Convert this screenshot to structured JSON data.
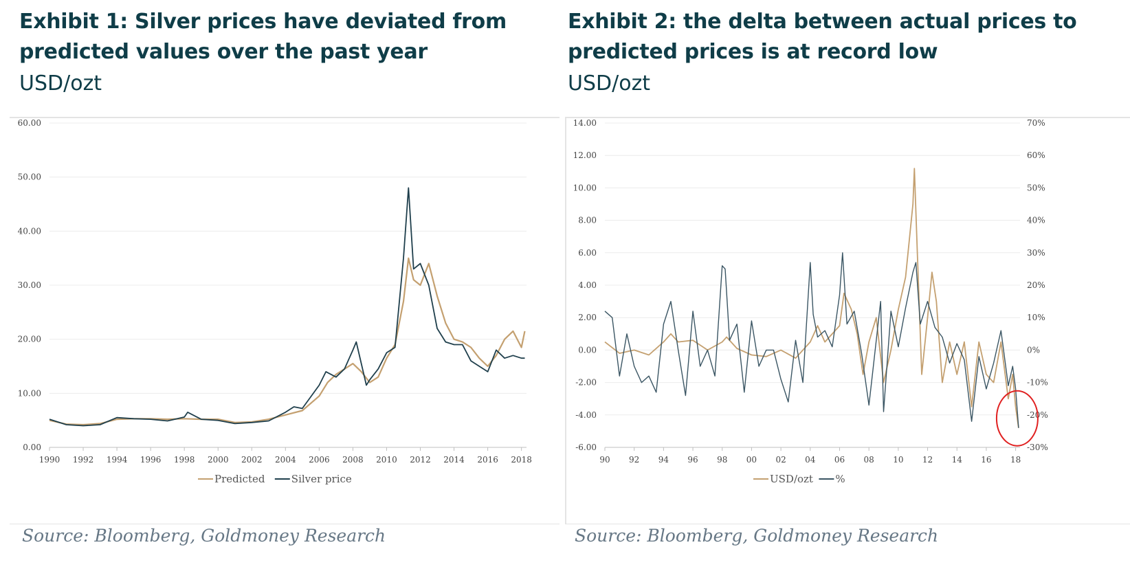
{
  "exhibit1": {
    "title": "Exhibit 1: Silver prices have deviated from predicted values over the past year",
    "subtitle": "USD/ozt",
    "source": "Source: Bloomberg, Goldmoney Research",
    "colors": {
      "predicted": "#c4a070",
      "silver": "#1f3f4c"
    }
  },
  "exhibit2": {
    "title": "Exhibit 2: the delta between actual prices to predicted prices is at record low",
    "subtitle": "USD/ozt",
    "source": "Source: Bloomberg, Goldmoney Research",
    "colors": {
      "usd": "#c4a070",
      "pct": "#3a5563",
      "highlight": "#e02020"
    }
  },
  "chart_data": [
    {
      "type": "line",
      "ylim": [
        0,
        60
      ],
      "xlim": [
        1990,
        2018.3
      ],
      "y_ticks": [
        "0.00",
        "10.00",
        "20.00",
        "30.00",
        "40.00",
        "50.00",
        "60.00"
      ],
      "x_ticks": [
        "1990",
        "1992",
        "1994",
        "1996",
        "1998",
        "2000",
        "2002",
        "2004",
        "2006",
        "2008",
        "2010",
        "2012",
        "2014",
        "2016",
        "2018"
      ],
      "legend_position": "bottom-center",
      "grid": "horizontal",
      "series": [
        {
          "name": "Predicted",
          "x": [
            1990,
            1991,
            1992,
            1993,
            1994,
            1995,
            1996,
            1997,
            1998,
            1999,
            2000,
            2001,
            2002,
            2003,
            2004,
            2005,
            2006,
            2006.5,
            2007,
            2007.5,
            2008,
            2008.5,
            2009,
            2009.5,
            2010,
            2010.5,
            2011,
            2011.3,
            2011.6,
            2012,
            2012.5,
            2013,
            2013.5,
            2014,
            2014.5,
            2015,
            2015.5,
            2016,
            2016.5,
            2017,
            2017.5,
            2018,
            2018.2
          ],
          "values": [
            5.0,
            4.3,
            4.2,
            4.4,
            5.2,
            5.3,
            5.3,
            5.2,
            5.3,
            5.2,
            5.2,
            4.6,
            4.7,
            5.2,
            6.0,
            6.8,
            9.5,
            12.0,
            13.5,
            14.5,
            15.5,
            14.0,
            12.0,
            13.0,
            16.5,
            19.0,
            27.0,
            35.0,
            31.0,
            30.0,
            34.0,
            28.0,
            23.0,
            20.0,
            19.5,
            18.5,
            16.5,
            15.0,
            17.0,
            20.0,
            21.5,
            18.5,
            21.5
          ]
        },
        {
          "name": "Silver price",
          "x": [
            1990,
            1991,
            1992,
            1993,
            1994,
            1995,
            1996,
            1997,
            1998,
            1998.2,
            1999,
            2000,
            2001,
            2002,
            2003,
            2004,
            2004.5,
            2005,
            2006,
            2006.4,
            2007,
            2007.5,
            2008,
            2008.2,
            2008.8,
            2009,
            2009.5,
            2010,
            2010.5,
            2011,
            2011.3,
            2011.6,
            2012,
            2012.5,
            2013,
            2013.5,
            2014,
            2014.5,
            2015,
            2015.5,
            2016,
            2016.5,
            2017,
            2017.5,
            2018,
            2018.2
          ],
          "values": [
            5.2,
            4.2,
            4.0,
            4.2,
            5.5,
            5.3,
            5.2,
            4.9,
            5.6,
            6.5,
            5.2,
            5.0,
            4.4,
            4.6,
            4.9,
            6.5,
            7.5,
            7.2,
            11.5,
            14.0,
            13.0,
            14.5,
            18.0,
            19.5,
            11.5,
            12.5,
            14.5,
            17.5,
            18.5,
            35.0,
            48.0,
            33.0,
            34.0,
            30.0,
            22.0,
            19.5,
            19.0,
            19.0,
            16.0,
            15.0,
            14.0,
            18.0,
            16.5,
            17.0,
            16.5,
            16.5
          ]
        }
      ]
    },
    {
      "type": "line",
      "ylim": [
        -6,
        14
      ],
      "y2lim": [
        -30,
        70
      ],
      "xlim": [
        1990,
        2018.3
      ],
      "y_ticks": [
        "-6.00",
        "-4.00",
        "-2.00",
        "0.00",
        "2.00",
        "4.00",
        "6.00",
        "8.00",
        "10.00",
        "12.00",
        "14.00"
      ],
      "y2_ticks": [
        "-30%",
        "-20%",
        "-10%",
        "0%",
        "10%",
        "20%",
        "30%",
        "40%",
        "50%",
        "60%",
        "70%"
      ],
      "x_ticks": [
        "90",
        "92",
        "94",
        "96",
        "98",
        "00",
        "02",
        "04",
        "06",
        "08",
        "10",
        "12",
        "14",
        "16",
        "18"
      ],
      "legend_position": "bottom-center",
      "grid": "horizontal",
      "series": [
        {
          "name": "USD/ozt",
          "axis": "left",
          "x": [
            1990,
            1991,
            1992,
            1993,
            1994,
            1994.5,
            1995,
            1996,
            1997,
            1998,
            1998.3,
            1999,
            2000,
            2001,
            2002,
            2003,
            2004,
            2004.5,
            2005,
            2006,
            2006.3,
            2006.8,
            2007.2,
            2007.6,
            2008,
            2008.5,
            2009,
            2009.5,
            2010,
            2010.5,
            2011,
            2011.1,
            2011.3,
            2011.6,
            2012,
            2012.3,
            2012.6,
            2013,
            2013.5,
            2014,
            2014.5,
            2015,
            2015.5,
            2016,
            2016.5,
            2017,
            2017.5,
            2017.8,
            2018,
            2018.2
          ],
          "values": [
            0.5,
            -0.2,
            0.0,
            -0.3,
            0.5,
            1.0,
            0.5,
            0.6,
            0.0,
            0.5,
            0.8,
            0.1,
            -0.3,
            -0.4,
            0.0,
            -0.5,
            0.5,
            1.5,
            0.5,
            1.5,
            3.5,
            2.5,
            1.0,
            -1.5,
            0.5,
            2.0,
            -2.0,
            0.0,
            2.5,
            4.5,
            9.0,
            11.2,
            6.0,
            -1.5,
            2.0,
            4.8,
            3.0,
            -2.0,
            0.5,
            -1.5,
            0.5,
            -3.5,
            0.5,
            -1.5,
            -2.0,
            0.5,
            -3.0,
            -1.5,
            -3.5,
            -4.8
          ]
        },
        {
          "name": "%",
          "axis": "right",
          "x": [
            1990,
            1990.5,
            1991,
            1991.5,
            1992,
            1992.5,
            1993,
            1993.5,
            1994,
            1994.5,
            1995,
            1995.5,
            1996,
            1996.5,
            1997,
            1997.5,
            1998,
            1998.2,
            1998.5,
            1999,
            1999.5,
            2000,
            2000.5,
            2001,
            2001.5,
            2002,
            2002.5,
            2003,
            2003.5,
            2004,
            2004.2,
            2004.5,
            2005,
            2005.5,
            2006,
            2006.2,
            2006.5,
            2007,
            2007.5,
            2008,
            2008.3,
            2008.8,
            2009,
            2009.5,
            2010,
            2010.5,
            2011,
            2011.2,
            2011.5,
            2012,
            2012.5,
            2013,
            2013.5,
            2014,
            2014.5,
            2015,
            2015.5,
            2016,
            2016.5,
            2017,
            2017.5,
            2017.8,
            2018,
            2018.2
          ],
          "values": [
            12,
            10,
            -8,
            5,
            -5,
            -10,
            -8,
            -13,
            8,
            15,
            0,
            -14,
            12,
            -5,
            0,
            -8,
            26,
            25,
            3,
            8,
            -13,
            9,
            -5,
            0,
            0,
            -9,
            -16,
            3,
            -10,
            27,
            11,
            4,
            6,
            1,
            17,
            30,
            8,
            12,
            -1,
            -17,
            -5,
            15,
            -19,
            12,
            1,
            13,
            24,
            27,
            8,
            15,
            7,
            4,
            -4,
            2,
            -3,
            -22,
            -2,
            -12,
            -4,
            6,
            -11,
            -5,
            -12,
            -24
          ]
        }
      ],
      "annotation": "circle highlighting the most recent low"
    }
  ]
}
